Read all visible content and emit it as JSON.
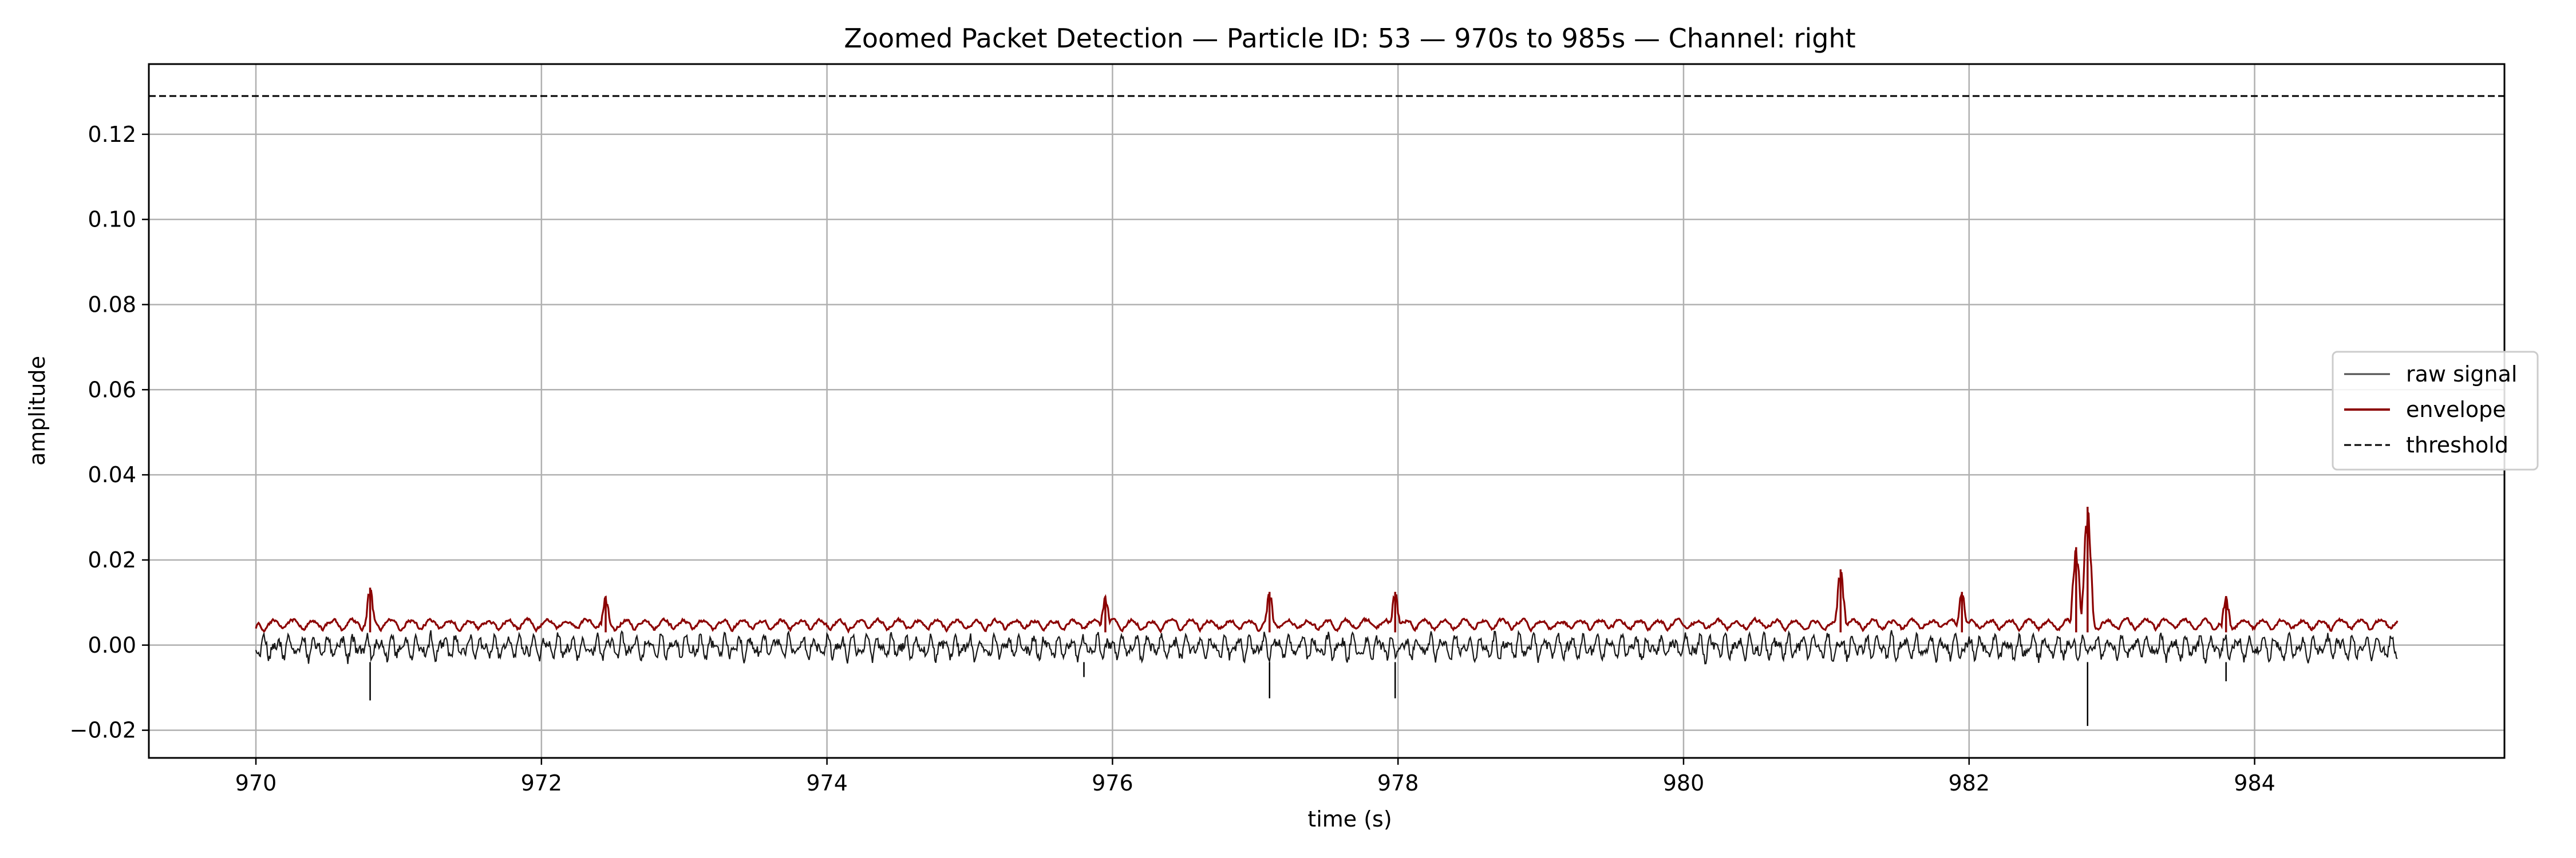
{
  "chart_data": {
    "type": "line",
    "title": "Zoomed Packet Detection — Particle ID: 53 — 970s to 985s — Channel: right",
    "xlabel": "time (s)",
    "ylabel": "amplitude",
    "xlim": [
      969.25,
      985.75
    ],
    "ylim": [
      -0.0265,
      0.1365
    ],
    "xticks": [
      970,
      972,
      974,
      976,
      978,
      980,
      982,
      984
    ],
    "yticks": [
      -0.02,
      0.0,
      0.02,
      0.04,
      0.06,
      0.08,
      0.1,
      0.12
    ],
    "ytick_labels": [
      "−0.02",
      "0.00",
      "0.02",
      "0.04",
      "0.06",
      "0.08",
      "0.10",
      "0.12"
    ],
    "grid": true,
    "legend_position": "center-right",
    "series": [
      {
        "name": "raw signal",
        "color": "#000000",
        "style": "solid",
        "x_range": [
          970,
          985
        ],
        "baseline_low": -0.004,
        "baseline_high": 0.003,
        "notable_minima": [
          {
            "x": 970.8,
            "y": -0.013
          },
          {
            "x": 975.8,
            "y": -0.0075
          },
          {
            "x": 977.1,
            "y": -0.0125
          },
          {
            "x": 977.98,
            "y": -0.0125
          },
          {
            "x": 982.83,
            "y": -0.019
          },
          {
            "x": 983.8,
            "y": -0.0085
          }
        ]
      },
      {
        "name": "envelope",
        "color": "#8b0000",
        "style": "solid",
        "x_range": [
          970,
          985
        ],
        "baseline": 0.003,
        "notable_peaks": [
          {
            "x": 970.8,
            "y": 0.0135
          },
          {
            "x": 972.45,
            "y": 0.0115
          },
          {
            "x": 975.95,
            "y": 0.0115
          },
          {
            "x": 977.1,
            "y": 0.0125
          },
          {
            "x": 977.98,
            "y": 0.0125
          },
          {
            "x": 981.1,
            "y": 0.0178
          },
          {
            "x": 981.95,
            "y": 0.0125
          },
          {
            "x": 982.75,
            "y": 0.023
          },
          {
            "x": 982.83,
            "y": 0.0325
          },
          {
            "x": 983.8,
            "y": 0.0115
          }
        ]
      },
      {
        "name": "threshold",
        "color": "#000000",
        "style": "dashed",
        "y": 0.129
      }
    ]
  }
}
